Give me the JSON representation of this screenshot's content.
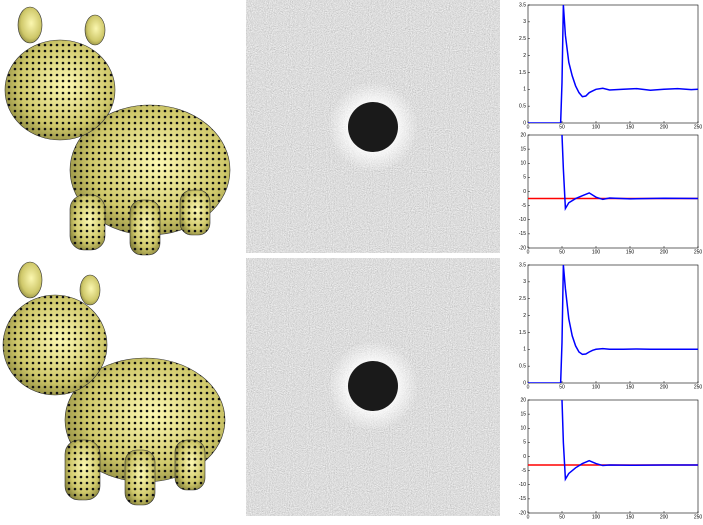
{
  "chart_data": [
    {
      "type": "line",
      "xlim": [
        0,
        250
      ],
      "xticks": [
        0,
        50,
        100,
        150,
        200,
        250
      ],
      "ylim": [
        0,
        3.5
      ],
      "yticks": [
        0,
        0.5,
        1,
        1.5,
        2,
        2.5,
        3,
        3.5
      ],
      "series": [
        {
          "color": "#0000ff",
          "x": [
            0,
            48,
            50,
            52,
            55,
            60,
            65,
            70,
            75,
            80,
            85,
            90,
            95,
            100,
            110,
            120,
            140,
            160,
            180,
            200,
            220,
            240,
            250
          ],
          "values": [
            0,
            0,
            1.2,
            3.5,
            2.6,
            1.8,
            1.4,
            1.1,
            0.9,
            0.78,
            0.8,
            0.9,
            0.95,
            1.0,
            1.03,
            0.98,
            1.0,
            1.02,
            0.97,
            1.0,
            1.02,
            0.99,
            1.0
          ]
        }
      ]
    },
    {
      "type": "line",
      "xlim": [
        0,
        250
      ],
      "xticks": [
        0,
        50,
        100,
        150,
        200,
        250
      ],
      "ylim": [
        -20,
        20
      ],
      "yticks": [
        -20,
        -15,
        -10,
        -5,
        0,
        5,
        10,
        15,
        20
      ],
      "series": [
        {
          "color": "#ff0000",
          "x": [
            0,
            250
          ],
          "values": [
            -2.5,
            -2.5
          ]
        },
        {
          "color": "#0000ff",
          "x": [
            50,
            52,
            55,
            60,
            70,
            80,
            90,
            100,
            110,
            120,
            150,
            200,
            250
          ],
          "values": [
            20,
            8,
            -6,
            -4,
            -2.5,
            -1.5,
            -0.5,
            -2,
            -2.8,
            -2.3,
            -2.6,
            -2.4,
            -2.5
          ]
        }
      ]
    },
    {
      "type": "line",
      "xlim": [
        0,
        250
      ],
      "xticks": [
        0,
        50,
        100,
        150,
        200,
        250
      ],
      "ylim": [
        0,
        3.5
      ],
      "yticks": [
        0,
        0.5,
        1,
        1.5,
        2,
        2.5,
        3,
        3.5
      ],
      "series": [
        {
          "color": "#0000ff",
          "x": [
            0,
            48,
            50,
            52,
            55,
            60,
            65,
            70,
            75,
            80,
            85,
            90,
            95,
            100,
            110,
            120,
            140,
            160,
            180,
            200,
            220,
            240,
            250
          ],
          "values": [
            0,
            0,
            1.2,
            3.5,
            2.8,
            1.9,
            1.4,
            1.1,
            0.92,
            0.85,
            0.86,
            0.92,
            0.97,
            1.0,
            1.02,
            1.0,
            1.0,
            1.01,
            1.0,
            1.0,
            1.0,
            1.0,
            1.0
          ]
        }
      ]
    },
    {
      "type": "line",
      "xlim": [
        0,
        250
      ],
      "xticks": [
        0,
        50,
        100,
        150,
        200,
        250
      ],
      "ylim": [
        -20,
        20
      ],
      "yticks": [
        -20,
        -15,
        -10,
        -5,
        0,
        5,
        10,
        15,
        20
      ],
      "series": [
        {
          "color": "#ff0000",
          "x": [
            0,
            250
          ],
          "values": [
            -3,
            -3
          ]
        },
        {
          "color": "#0000ff",
          "x": [
            50,
            52,
            55,
            60,
            70,
            80,
            90,
            100,
            110,
            120,
            150,
            200,
            250
          ],
          "values": [
            20,
            5,
            -8,
            -6,
            -4,
            -2.5,
            -1.5,
            -2.5,
            -3.2,
            -3,
            -3.1,
            -3,
            -3
          ]
        }
      ]
    }
  ]
}
